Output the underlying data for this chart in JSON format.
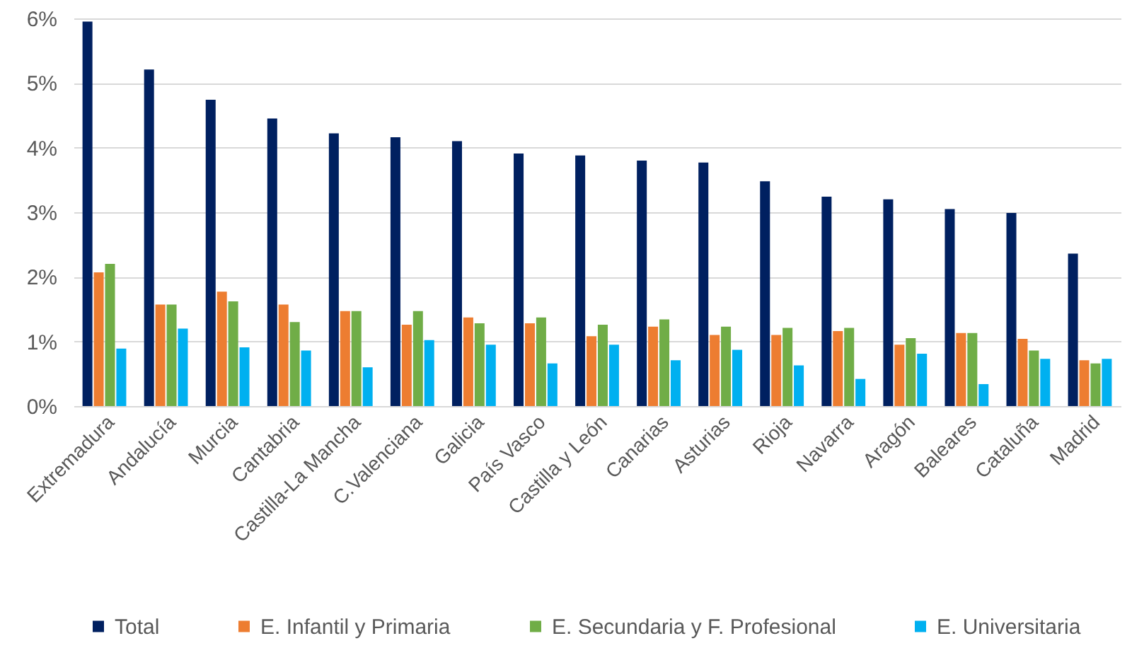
{
  "chart_data": {
    "type": "bar",
    "categories": [
      "Extremadura",
      "Andalucía",
      "Murcia",
      "Cantabria",
      "Castilla-La Mancha",
      "C.Valenciana",
      "Galicia",
      "País Vasco",
      "Castilla y León",
      "Canarias",
      "Asturias",
      "Rioja",
      "Navarra",
      "Aragón",
      "Baleares",
      "Cataluña",
      "Madrid"
    ],
    "series": [
      {
        "name": "Total",
        "color": "#002060",
        "values": [
          5.95,
          5.21,
          4.74,
          4.45,
          4.22,
          4.16,
          4.1,
          3.91,
          3.88,
          3.8,
          3.77,
          3.48,
          3.24,
          3.2,
          3.05,
          2.99,
          2.36
        ]
      },
      {
        "name": "E. Infantil y Primaria",
        "color": "#ed7d31",
        "values": [
          2.07,
          1.57,
          1.77,
          1.57,
          1.47,
          1.26,
          1.37,
          1.28,
          1.08,
          1.23,
          1.1,
          1.1,
          1.16,
          0.95,
          1.13,
          1.04,
          0.71
        ]
      },
      {
        "name": "E. Secundaria y F. Profesional",
        "color": "#70ad47",
        "values": [
          2.2,
          1.57,
          1.62,
          1.3,
          1.47,
          1.47,
          1.28,
          1.37,
          1.26,
          1.34,
          1.23,
          1.21,
          1.21,
          1.05,
          1.13,
          0.86,
          0.66
        ]
      },
      {
        "name": "E. Universitaria",
        "color": "#00b0f0",
        "values": [
          0.89,
          1.2,
          0.91,
          0.86,
          0.6,
          1.02,
          0.95,
          0.66,
          0.95,
          0.71,
          0.87,
          0.63,
          0.42,
          0.81,
          0.34,
          0.73,
          0.73
        ]
      }
    ],
    "ylim": [
      0,
      6
    ],
    "yticks": [
      {
        "value": 0,
        "label": "0%"
      },
      {
        "value": 1,
        "label": "1%"
      },
      {
        "value": 2,
        "label": "2%"
      },
      {
        "value": 3,
        "label": "3%"
      },
      {
        "value": 4,
        "label": "4%"
      },
      {
        "value": 5,
        "label": "5%"
      },
      {
        "value": 6,
        "label": "6%"
      }
    ],
    "grid": "y",
    "legend": "bottom"
  }
}
